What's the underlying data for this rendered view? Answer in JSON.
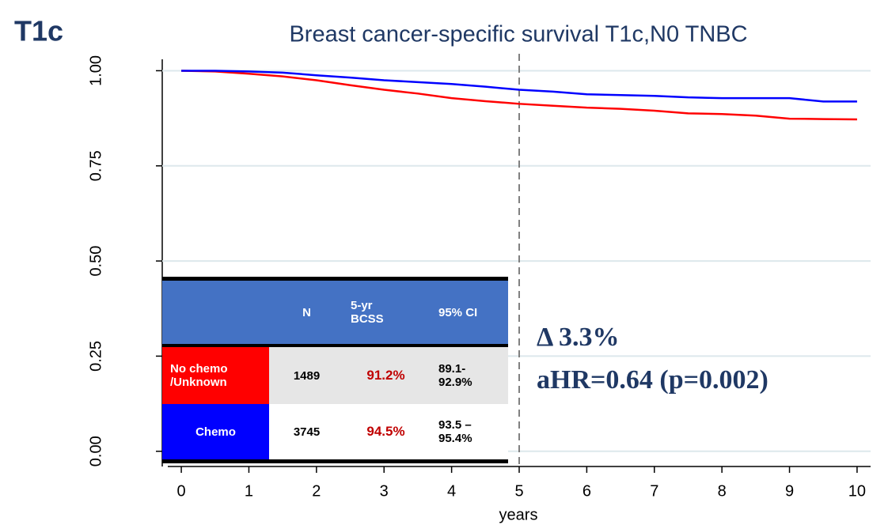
{
  "chart_data": {
    "type": "line",
    "corner_label": "T1c",
    "title": "Breast cancer-specific survival T1c,N0 TNBC",
    "x_label": "years",
    "x": [
      0,
      0.5,
      1,
      1.5,
      2,
      2.5,
      3,
      3.5,
      4,
      4.5,
      5,
      5.5,
      6,
      6.5,
      7,
      7.5,
      8,
      8.5,
      9,
      9.5,
      10
    ],
    "series": [
      {
        "name": "No chemo /Unknown",
        "color": "#ff0000",
        "values": [
          1,
          0.998,
          0.992,
          0.985,
          0.975,
          0.962,
          0.95,
          0.94,
          0.928,
          0.92,
          0.913,
          0.908,
          0.903,
          0.9,
          0.895,
          0.888,
          0.886,
          0.882,
          0.874,
          0.873,
          0.872
        ]
      },
      {
        "name": "Chemo",
        "color": "#0000ff",
        "values": [
          1,
          1,
          0.998,
          0.995,
          0.988,
          0.982,
          0.975,
          0.97,
          0.965,
          0.958,
          0.95,
          0.945,
          0.938,
          0.936,
          0.934,
          0.93,
          0.928,
          0.928,
          0.928,
          0.919,
          0.919
        ]
      }
    ],
    "xlim": [
      -0.2,
      10.2
    ],
    "ylim": [
      -0.04,
      1.03
    ],
    "xticks": [
      0,
      1,
      2,
      3,
      4,
      5,
      6,
      7,
      8,
      9,
      10
    ],
    "yticks": [
      {
        "value": 0,
        "label": "0.00"
      },
      {
        "value": 0.25,
        "label": "0.25"
      },
      {
        "value": 0.5,
        "label": "0.50"
      },
      {
        "value": 0.75,
        "label": "0.75"
      },
      {
        "value": 1,
        "label": "1.00"
      }
    ],
    "grid": true,
    "vline": 5,
    "table": {
      "headers": [
        "N",
        "5-yr BCSS",
        "95% CI"
      ],
      "rows": [
        [
          "1489",
          "91.2%",
          "89.1- 92.9%"
        ],
        [
          "3745",
          "94.5%",
          "93.5 – 95.4%"
        ]
      ]
    },
    "annotations": [
      "Δ 3.3%",
      "aHR=0.64 (p=0.002)"
    ]
  }
}
